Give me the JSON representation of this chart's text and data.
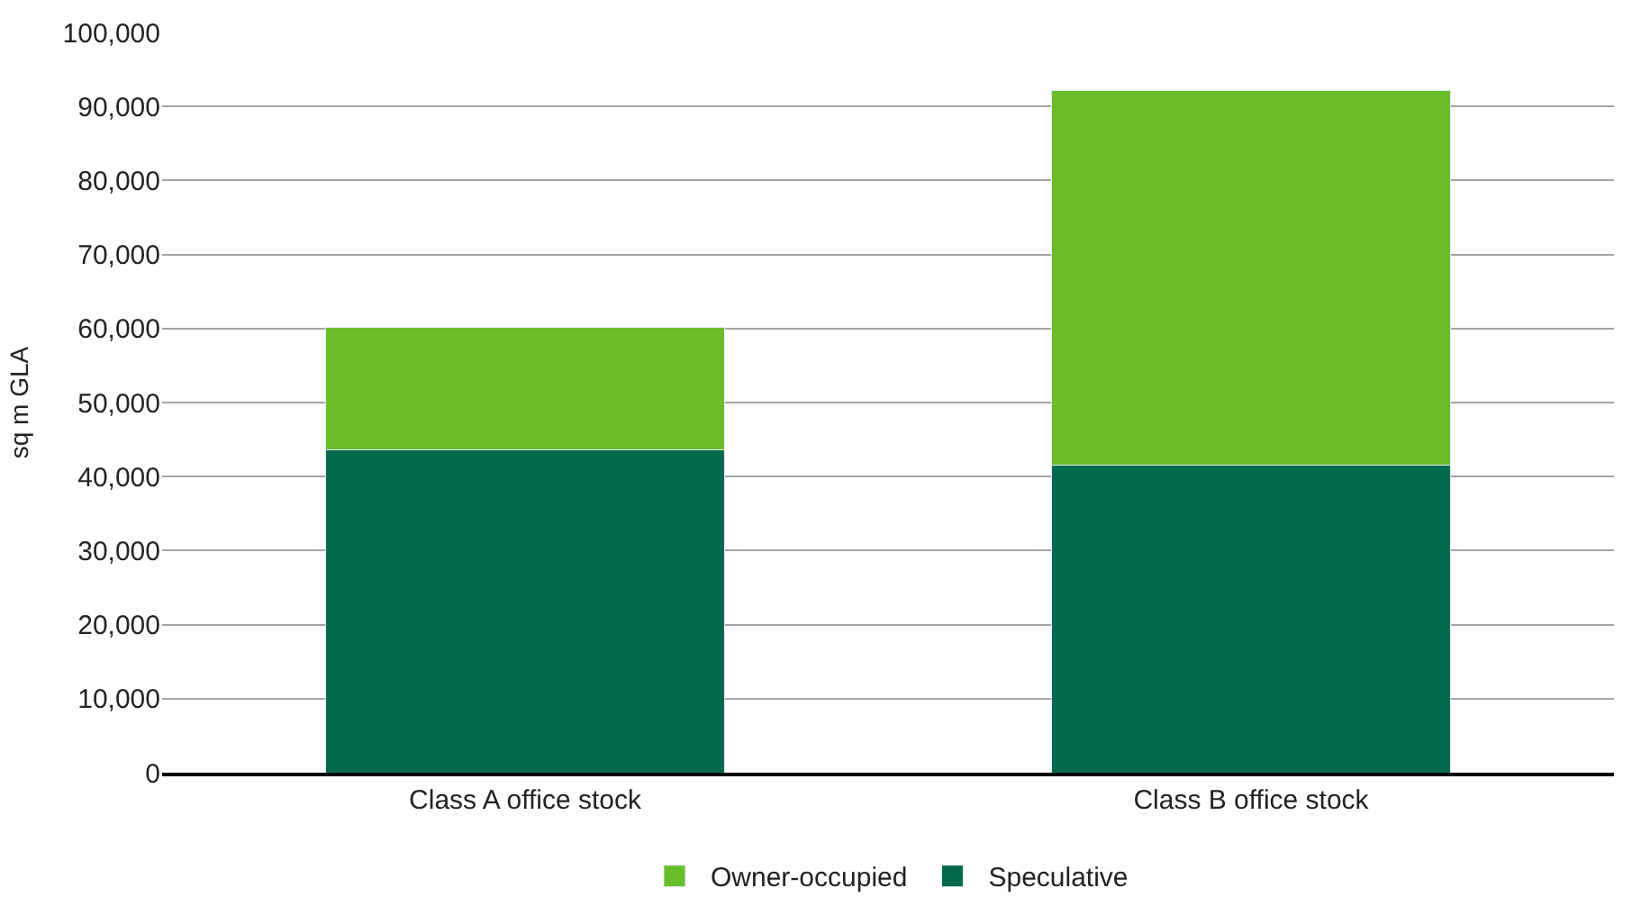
{
  "chart_data": {
    "type": "bar",
    "stacked": true,
    "ylabel": "sq m GLA",
    "categories": [
      "Class A office stock",
      "Class B office stock"
    ],
    "series": [
      {
        "name": "Speculative",
        "color": "#006a4a",
        "values": [
          43600,
          41600
        ]
      },
      {
        "name": "Owner-occupied",
        "color": "#6abd2a",
        "values": [
          16600,
          50600
        ]
      }
    ],
    "ylim": [
      0,
      100000
    ],
    "yticks": [
      {
        "value": 0,
        "label": "0"
      },
      {
        "value": 10000,
        "label": "10,000"
      },
      {
        "value": 20000,
        "label": "20,000"
      },
      {
        "value": 30000,
        "label": "30,000"
      },
      {
        "value": 40000,
        "label": "40,000"
      },
      {
        "value": 50000,
        "label": "50,000"
      },
      {
        "value": 60000,
        "label": "60,000"
      },
      {
        "value": 70000,
        "label": "70,000"
      },
      {
        "value": 80000,
        "label": "80,000"
      },
      {
        "value": 90000,
        "label": "90,000"
      },
      {
        "value": 100000,
        "label": "100,000"
      }
    ],
    "grid": "y",
    "legend": "bottom"
  }
}
